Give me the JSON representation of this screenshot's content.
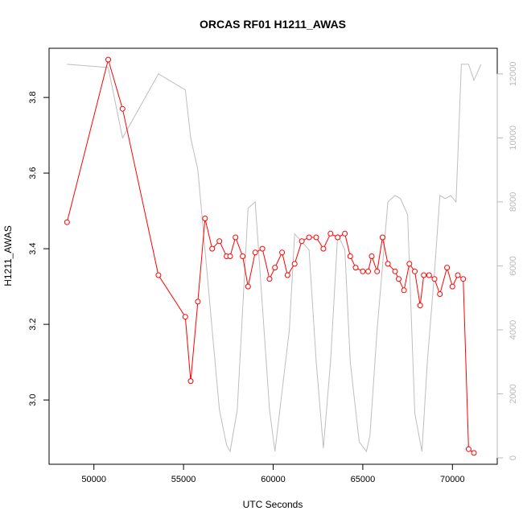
{
  "chart_data": {
    "type": "line",
    "title": "ORCAS RF01 H1211_AWAS",
    "xlabel": "UTC Seconds",
    "ylabel": "H1211_AWAS",
    "xlim": [
      47500,
      72500
    ],
    "ylim": [
      2.83,
      3.93
    ],
    "y2lim": [
      -200,
      12800
    ],
    "x_ticks": [
      50000,
      55000,
      60000,
      65000,
      70000
    ],
    "x_tick_labels": [
      "50000",
      "55000",
      "60000",
      "65000",
      "70000"
    ],
    "y_ticks": [
      3.0,
      3.2,
      3.4,
      3.6,
      3.8
    ],
    "y_tick_labels": [
      "3.0",
      "3.2",
      "3.4",
      "3.6",
      "3.8"
    ],
    "y2_ticks": [
      0,
      2000,
      4000,
      6000,
      8000,
      10000,
      12000
    ],
    "y2_tick_labels": [
      "0",
      "2000",
      "4000",
      "6000",
      "8000",
      "10000",
      "12000"
    ],
    "grid": false,
    "series": [
      {
        "axis": "left",
        "color": "#ff0000",
        "marker": "open-circle",
        "x": [
          48500,
          50800,
          51600,
          53600,
          55100,
          55400,
          55800,
          56200,
          56600,
          57000,
          57400,
          57600,
          57900,
          58300,
          58600,
          59000,
          59400,
          59800,
          60100,
          60500,
          60800,
          61200,
          61600,
          62000,
          62400,
          62800,
          63200,
          63600,
          64000,
          64300,
          64600,
          65000,
          65300,
          65500,
          65800,
          66100,
          66400,
          66800,
          67000,
          67300,
          67600,
          67900,
          68200,
          68400,
          68700,
          69000,
          69300,
          69700,
          70000,
          70300,
          70600,
          70900,
          71200
        ],
        "values": [
          3.47,
          3.9,
          3.77,
          3.33,
          3.22,
          3.05,
          3.26,
          3.48,
          3.4,
          3.42,
          3.38,
          3.38,
          3.43,
          3.38,
          3.3,
          3.39,
          3.4,
          3.32,
          3.35,
          3.39,
          3.33,
          3.36,
          3.42,
          3.43,
          3.43,
          3.4,
          3.44,
          3.43,
          3.44,
          3.38,
          3.35,
          3.34,
          3.34,
          3.38,
          3.34,
          3.43,
          3.36,
          3.34,
          3.32,
          3.29,
          3.36,
          3.34,
          3.25,
          3.33,
          3.33,
          3.32,
          3.28,
          3.35,
          3.3,
          3.33,
          3.32,
          2.87,
          2.86
        ]
      },
      {
        "axis": "right",
        "color": "#bebebe",
        "marker": "none",
        "x": [
          48500,
          50800,
          51600,
          53600,
          55100,
          55400,
          55800,
          56600,
          57000,
          57400,
          57600,
          58000,
          58600,
          59000,
          59800,
          60100,
          60900,
          61200,
          62000,
          62400,
          62800,
          63200,
          63600,
          64000,
          64300,
          64800,
          65200,
          65400,
          65800,
          66400,
          66800,
          67100,
          67500,
          67900,
          68300,
          68600,
          69000,
          69300,
          69600,
          69900,
          70200,
          70500,
          70900,
          71200,
          71600
        ],
        "values": [
          12300,
          12200,
          10000,
          12000,
          11500,
          10000,
          9000,
          4000,
          1500,
          400,
          200,
          1500,
          7800,
          8000,
          1500,
          200,
          4000,
          7000,
          6500,
          3000,
          300,
          3000,
          7000,
          6500,
          3000,
          500,
          200,
          700,
          4000,
          8000,
          8200,
          8100,
          7600,
          1400,
          200,
          3000,
          5800,
          8200,
          8100,
          8200,
          8000,
          12300,
          12300,
          11800,
          12300
        ]
      }
    ]
  }
}
